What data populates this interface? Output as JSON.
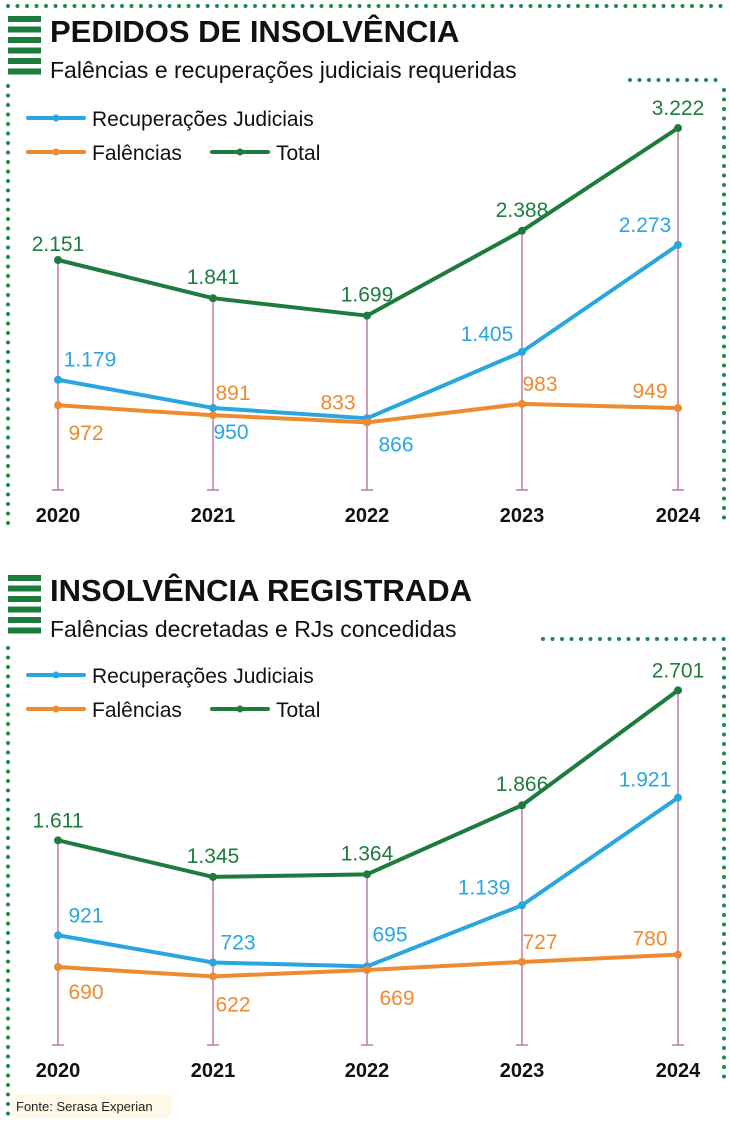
{
  "colors": {
    "rj": "#2aa6df",
    "falencias": "#ee8a30",
    "total": "#1e7b3e",
    "gridline": "#b5679a",
    "border": "#1e8a4a"
  },
  "source": "Fonte: Serasa Experian",
  "chart_data": [
    {
      "type": "line",
      "title": "PEDIDOS DE INSOLVÊNCIA",
      "subtitle": "Falências e recuperações judiciais requeridas",
      "categories": [
        "2020",
        "2021",
        "2022",
        "2023",
        "2024"
      ],
      "legend": [
        "Recuperações Judiciais",
        "Falências",
        "Total"
      ],
      "series": [
        {
          "name": "Recuperações Judiciais",
          "key": "rj",
          "values": [
            1179,
            950,
            866,
            1405,
            2273
          ],
          "labels": [
            "1.179",
            "950",
            "866",
            "1.405",
            "2.273"
          ]
        },
        {
          "name": "Falências",
          "key": "falencias",
          "values": [
            972,
            891,
            833,
            983,
            949
          ],
          "labels": [
            "972",
            "891",
            "833",
            "983",
            "949"
          ]
        },
        {
          "name": "Total",
          "key": "total",
          "values": [
            2151,
            1841,
            1699,
            2388,
            3222
          ],
          "labels": [
            "2.151",
            "1.841",
            "1.699",
            "2.388",
            "3.222"
          ]
        }
      ]
    },
    {
      "type": "line",
      "title": "INSOLVÊNCIA REGISTRADA",
      "subtitle": "Falências decretadas e RJs concedidas",
      "categories": [
        "2020",
        "2021",
        "2022",
        "2023",
        "2024"
      ],
      "legend": [
        "Recuperações Judiciais",
        "Falências",
        "Total"
      ],
      "series": [
        {
          "name": "Recuperações Judiciais",
          "key": "rj",
          "values": [
            921,
            723,
            695,
            1139,
            1921
          ],
          "labels": [
            "921",
            "723",
            "695",
            "1.139",
            "1.921"
          ]
        },
        {
          "name": "Falências",
          "key": "falencias",
          "values": [
            690,
            622,
            669,
            727,
            780
          ],
          "labels": [
            "690",
            "622",
            "669",
            "727",
            "780"
          ]
        },
        {
          "name": "Total",
          "key": "total",
          "values": [
            1611,
            1345,
            1364,
            1866,
            2701
          ],
          "labels": [
            "1.611",
            "1.345",
            "1.364",
            "1.866",
            "2.701"
          ]
        }
      ]
    }
  ]
}
